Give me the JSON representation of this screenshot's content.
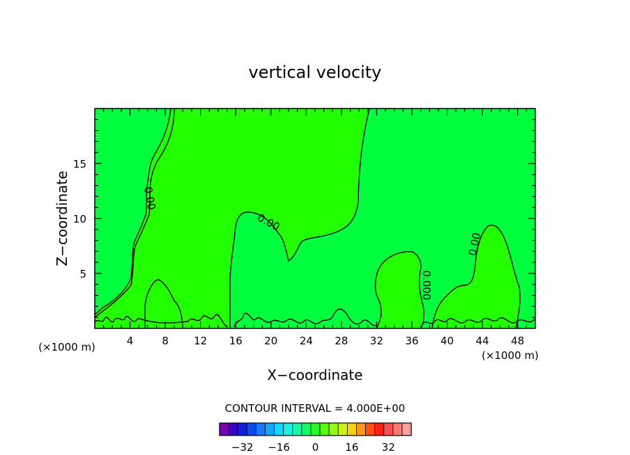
{
  "chart_data": {
    "type": "contour",
    "title": "vertical velocity",
    "xlabel": "X−coordinate",
    "ylabel": "Z−coordinate",
    "x_unit": "(×1000 m)",
    "x_unit_right": "(×1000 m)",
    "xlim": [
      0,
      50
    ],
    "ylim": [
      0,
      20
    ],
    "x_ticks": [
      4,
      8,
      12,
      16,
      20,
      24,
      28,
      32,
      36,
      40,
      44,
      48
    ],
    "y_ticks": [
      5,
      10,
      15
    ],
    "contour_labels": [
      "0.00",
      "0.00",
      "0.000",
      "0.00"
    ],
    "contour_interval_text": "CONTOUR INTERVAL =  4.000E+00",
    "contour_interval": 4.0,
    "colorbar": {
      "colors": [
        "#7a00b8",
        "#3a00c8",
        "#1020dc",
        "#0a48f0",
        "#1a78ff",
        "#10a8ff",
        "#10d8ff",
        "#14f2e0",
        "#10f8a8",
        "#10f868",
        "#22fa20",
        "#58fa10",
        "#98f810",
        "#d0f010",
        "#f8d010",
        "#ff9810",
        "#ff5010",
        "#ff2010",
        "#f85050",
        "#f87878",
        "#f8a0a0"
      ],
      "tick_labels": [
        "−32",
        "−16",
        "0",
        "16",
        "32"
      ],
      "tick_values": [
        -32,
        -16,
        0,
        16,
        32
      ]
    },
    "fill_colors": {
      "positive": "#22ff00",
      "near_zero": "#00ff3c"
    }
  }
}
